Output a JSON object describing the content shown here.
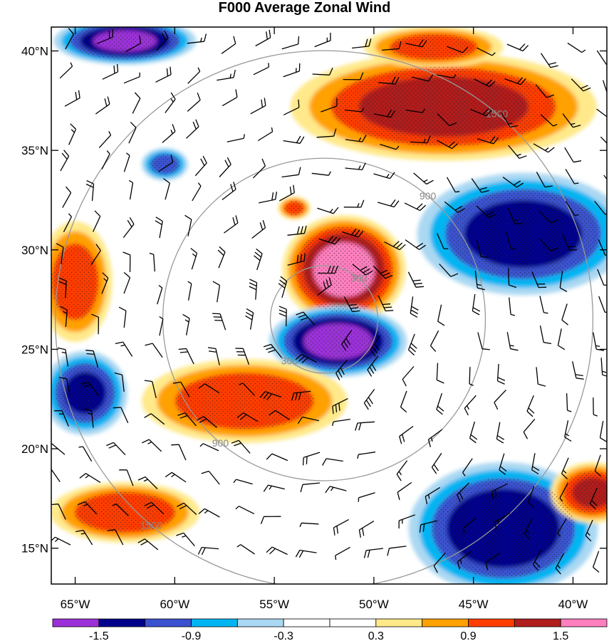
{
  "title": "F000 Average Zonal Wind",
  "lat_labels": [
    "40°N",
    "35°N",
    "30°N",
    "25°N",
    "20°N",
    "15°N"
  ],
  "lat_values": [
    40,
    35,
    30,
    25,
    20,
    15
  ],
  "lon_labels": [
    "65°W",
    "60°W",
    "55°W",
    "50°W",
    "45°W",
    "40°W"
  ],
  "lon_values": [
    -65,
    -60,
    -55,
    -50,
    -45,
    -40
  ],
  "extent": {
    "lon_min": -66.2,
    "lon_max": -38.3,
    "lat_min": 13.2,
    "lat_max": 41.2
  },
  "storm_center": {
    "lon": -52.5,
    "lat": 26.5
  },
  "range_rings": [
    {
      "radius_km": 300,
      "label": "300"
    },
    {
      "radius_km": 900,
      "label": "900"
    },
    {
      "radius_km": 1500,
      "label": "1500"
    }
  ],
  "colorbar": {
    "colors": [
      "#9b30d8",
      "#00008b",
      "#3a52cf",
      "#00b5f2",
      "#aad8f2",
      "#ffffff",
      "#ffffff",
      "#ffe98a",
      "#ffa100",
      "#ff3d00",
      "#b01e1e",
      "#ff7fbf"
    ],
    "labels": [
      "-1.5",
      "-0.9",
      "-0.3",
      "0.3",
      "0.9",
      "1.5"
    ]
  },
  "anomaly_features": [
    {
      "lon": -51.5,
      "lat": 29.0,
      "rlon": 2.6,
      "rlat": 2.3,
      "value": 1.6
    },
    {
      "lon": -51.8,
      "lat": 25.4,
      "rlon": 2.9,
      "rlat": 1.5,
      "value": -1.6
    },
    {
      "lon": -56.5,
      "lat": 22.4,
      "rlon": 4.4,
      "rlat": 1.8,
      "value": 1.1
    },
    {
      "lon": -46.5,
      "lat": 37.2,
      "rlon": 6.5,
      "rlat": 2.3,
      "value": 1.3
    },
    {
      "lon": -42.5,
      "lat": 30.8,
      "rlon": 4.5,
      "rlat": 2.6,
      "value": -1.3
    },
    {
      "lon": -43.5,
      "lat": 16.0,
      "rlon": 4.0,
      "rlat": 2.8,
      "value": -1.4
    },
    {
      "lon": -62.5,
      "lat": 16.8,
      "rlon": 3.2,
      "rlat": 1.3,
      "value": 1.1
    },
    {
      "lon": -62.5,
      "lat": 40.5,
      "rlon": 3.0,
      "rlat": 1.0,
      "value": -1.5
    },
    {
      "lon": -64.5,
      "lat": 22.8,
      "rlon": 1.8,
      "rlat": 1.8,
      "value": -1.2
    },
    {
      "lon": -65.0,
      "lat": 28.4,
      "rlon": 1.6,
      "rlat": 2.6,
      "value": 1.0
    },
    {
      "lon": -39.0,
      "lat": 17.8,
      "rlon": 1.8,
      "rlat": 1.3,
      "value": 1.2
    },
    {
      "lon": -60.5,
      "lat": 34.3,
      "rlon": 1.0,
      "rlat": 0.7,
      "value": -1.0
    },
    {
      "lon": -54.0,
      "lat": 32.1,
      "rlon": 0.7,
      "rlat": 0.5,
      "value": 1.0
    },
    {
      "lon": -47.0,
      "lat": 40.2,
      "rlon": 3.0,
      "rlat": 0.9,
      "value": 1.0
    }
  ]
}
